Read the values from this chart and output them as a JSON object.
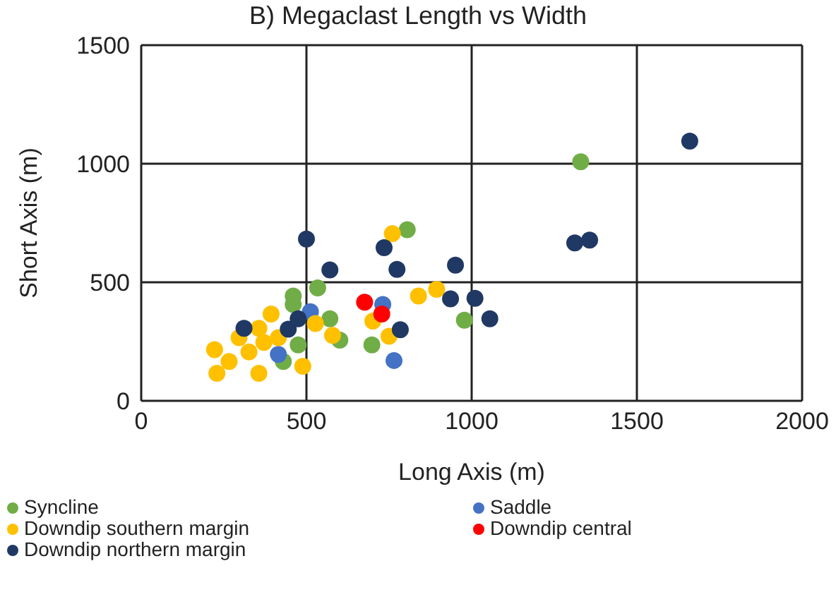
{
  "chart_data": {
    "type": "scatter",
    "title": "B) Megaclast Length vs Width",
    "xlabel": "Long Axis (m)",
    "ylabel": "Short Axis (m)",
    "xlim": [
      0,
      2000
    ],
    "xticks": [
      0,
      500,
      1000,
      1500,
      2000
    ],
    "ylim": [
      0,
      1500
    ],
    "yticks": [
      0,
      500,
      1000,
      1500
    ],
    "grid": true,
    "legend": "bottom",
    "marker": "circle",
    "series": [
      {
        "name": "Syncline",
        "color": "#70ad47",
        "x": [
          1330,
          805,
          534,
          460,
          978,
          698,
          571,
          601,
          430,
          475,
          460
        ],
        "values": [
          1008,
          722,
          476,
          442,
          340,
          236,
          346,
          256,
          166,
          236,
          406
        ]
      },
      {
        "name": "Saddle",
        "color": "#4472c4",
        "x": [
          731,
          765,
          415,
          512
        ],
        "values": [
          406,
          170,
          196,
          376
        ]
      },
      {
        "name": "Downdip southern margin",
        "color": "#ffc000",
        "x": [
          760,
          839,
          894,
          701,
          750,
          579,
          527,
          489,
          356,
          229,
          222,
          266,
          296,
          356,
          393,
          371,
          415,
          326
        ],
        "values": [
          705,
          442,
          470,
          336,
          272,
          276,
          326,
          146,
          116,
          116,
          216,
          166,
          266,
          306,
          366,
          246,
          266,
          206
        ]
      },
      {
        "name": "Downdip central",
        "color": "#ff0000",
        "x": [
          676,
          728
        ],
        "values": [
          416,
          366
        ]
      },
      {
        "name": "Downdip northern margin",
        "color": "#203864",
        "x": [
          1660,
          1312,
          1357,
          500,
          735,
          571,
          774,
          951,
          936,
          1010,
          1055,
          784,
          311,
          445,
          475
        ],
        "values": [
          1095,
          666,
          678,
          682,
          646,
          552,
          554,
          572,
          430,
          432,
          346,
          300,
          306,
          302,
          346
        ]
      }
    ]
  }
}
